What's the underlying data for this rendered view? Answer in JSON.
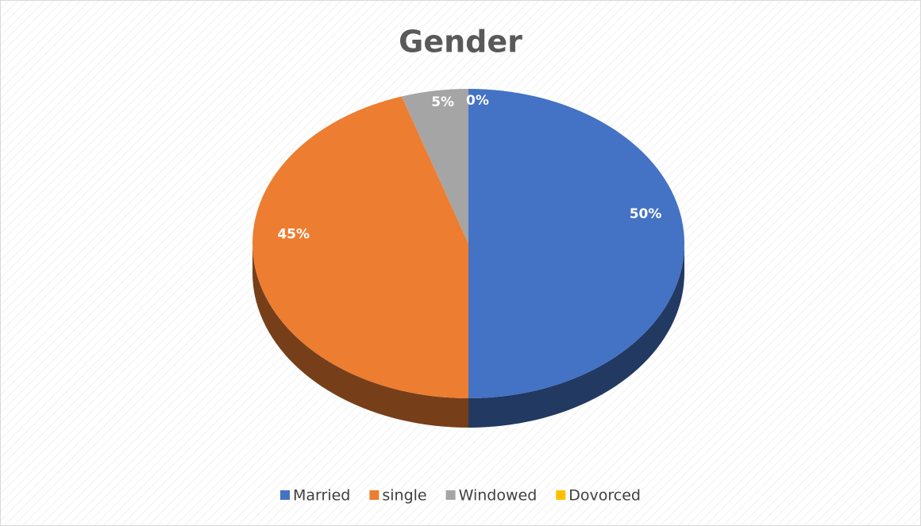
{
  "chart_data": {
    "type": "pie",
    "title": "Gender",
    "categories": [
      "Married",
      "single",
      "Windowed",
      "Dovorced"
    ],
    "values": [
      50,
      45,
      5,
      0
    ],
    "value_labels": [
      "50%",
      "45%",
      "5%",
      "0%"
    ],
    "colors": [
      "#4472c4",
      "#ed7d31",
      "#a5a5a5",
      "#ffc000"
    ],
    "legend": "bottom"
  }
}
